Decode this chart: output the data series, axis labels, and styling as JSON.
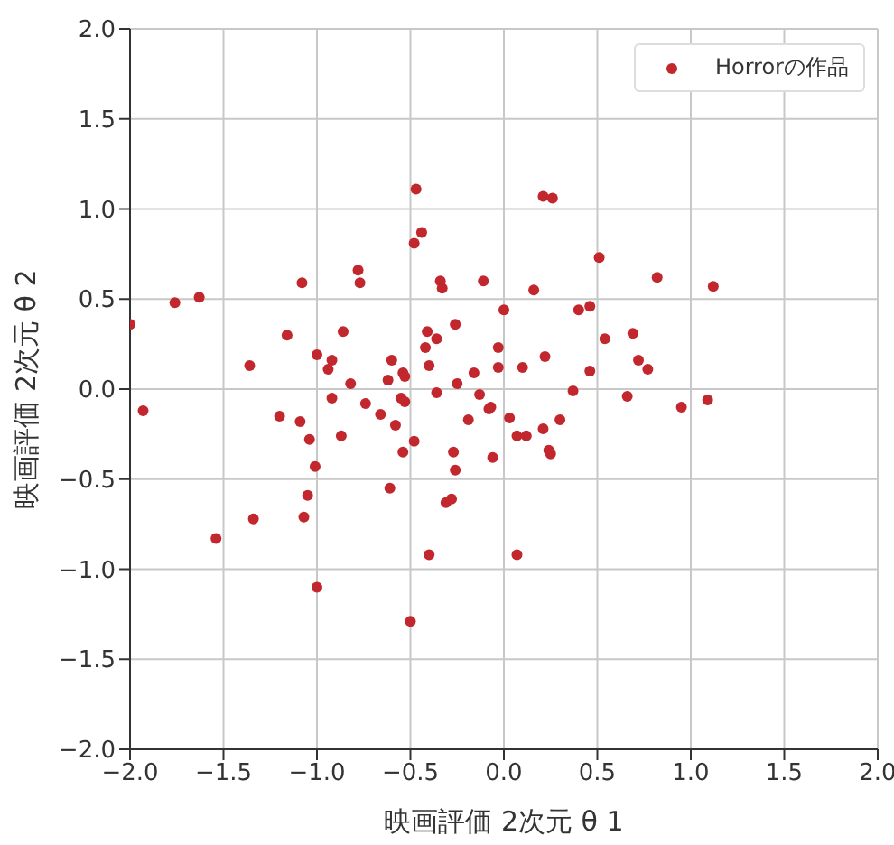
{
  "chart_data": {
    "type": "scatter",
    "xlabel": "映画評価 2次元 θ 1",
    "ylabel": "映画評価 2次元 θ 2",
    "xlim": [
      -2,
      2
    ],
    "xticks": [
      {
        "value": -2,
        "label": "−2.0"
      },
      {
        "value": -1.5,
        "label": "−1.5"
      },
      {
        "value": -1,
        "label": "−1.0"
      },
      {
        "value": -0.5,
        "label": "−0.5"
      },
      {
        "value": 0,
        "label": "0.0"
      },
      {
        "value": 0.5,
        "label": "0.5"
      },
      {
        "value": 1,
        "label": "1.0"
      },
      {
        "value": 1.5,
        "label": "1.5"
      },
      {
        "value": 2,
        "label": "2.0"
      }
    ],
    "ylim": [
      -2,
      2
    ],
    "yticks": [
      {
        "value": -2,
        "label": "−2.0"
      },
      {
        "value": -1.5,
        "label": "−1.5"
      },
      {
        "value": -1,
        "label": "−1.0"
      },
      {
        "value": -0.5,
        "label": "−0.5"
      },
      {
        "value": 0,
        "label": "0.0"
      },
      {
        "value": 0.5,
        "label": "0.5"
      },
      {
        "value": 1,
        "label": "1.0"
      },
      {
        "value": 1.5,
        "label": "1.5"
      },
      {
        "value": 2,
        "label": "2.0"
      }
    ],
    "grid": true,
    "legend": "top right",
    "marker": "circle",
    "series": [
      {
        "name": "Horrorの作品",
        "color": "#c1272d",
        "x": [
          -2.0,
          -1.93,
          -1.76,
          -1.63,
          -1.54,
          -1.36,
          -1.34,
          -1.2,
          -1.16,
          -1.09,
          -1.08,
          -1.07,
          -1.05,
          -1.04,
          -1.01,
          -1.0,
          -1.0,
          -0.94,
          -0.92,
          -0.92,
          -0.87,
          -0.86,
          -0.82,
          -0.78,
          -0.77,
          -0.74,
          -0.66,
          -0.62,
          -0.61,
          -0.6,
          -0.58,
          -0.55,
          -0.54,
          -0.54,
          -0.53,
          -0.53,
          -0.5,
          -0.48,
          -0.48,
          -0.47,
          -0.44,
          -0.42,
          -0.41,
          -0.4,
          -0.4,
          -0.36,
          -0.36,
          -0.34,
          -0.33,
          -0.31,
          -0.28,
          -0.27,
          -0.26,
          -0.26,
          -0.25,
          -0.19,
          -0.16,
          -0.13,
          -0.11,
          -0.08,
          -0.07,
          -0.06,
          -0.03,
          -0.03,
          0.0,
          0.03,
          0.07,
          0.07,
          0.1,
          0.12,
          0.16,
          0.21,
          0.22,
          0.21,
          0.24,
          0.25,
          0.26,
          0.3,
          0.37,
          0.4,
          0.46,
          0.46,
          0.51,
          0.54,
          0.66,
          0.69,
          0.72,
          0.77,
          0.82,
          0.95,
          1.09,
          1.12
        ],
        "values": [
          0.36,
          -0.12,
          0.48,
          0.51,
          -0.83,
          0.13,
          -0.72,
          -0.15,
          0.3,
          -0.18,
          0.59,
          -0.71,
          -0.59,
          -0.28,
          -0.43,
          0.19,
          -1.1,
          0.11,
          0.16,
          -0.05,
          -0.26,
          0.32,
          0.03,
          0.66,
          0.59,
          -0.08,
          -0.14,
          0.05,
          -0.55,
          0.16,
          -0.2,
          -0.05,
          0.09,
          -0.35,
          0.07,
          -0.07,
          -1.29,
          -0.29,
          0.81,
          1.11,
          0.87,
          0.23,
          0.32,
          -0.92,
          0.13,
          0.28,
          -0.02,
          0.6,
          0.56,
          -0.63,
          -0.61,
          -0.35,
          0.36,
          -0.45,
          0.03,
          -0.17,
          0.09,
          -0.03,
          0.6,
          -0.11,
          -0.1,
          -0.38,
          0.23,
          0.12,
          0.44,
          -0.16,
          -0.26,
          -0.92,
          0.12,
          -0.26,
          0.55,
          1.07,
          0.18,
          -0.22,
          -0.34,
          -0.36,
          1.06,
          -0.17,
          -0.01,
          0.44,
          0.46,
          0.1,
          0.73,
          0.28,
          -0.04,
          0.31,
          0.16,
          0.11,
          0.62,
          -0.1,
          -0.06,
          0.57
        ]
      }
    ]
  }
}
